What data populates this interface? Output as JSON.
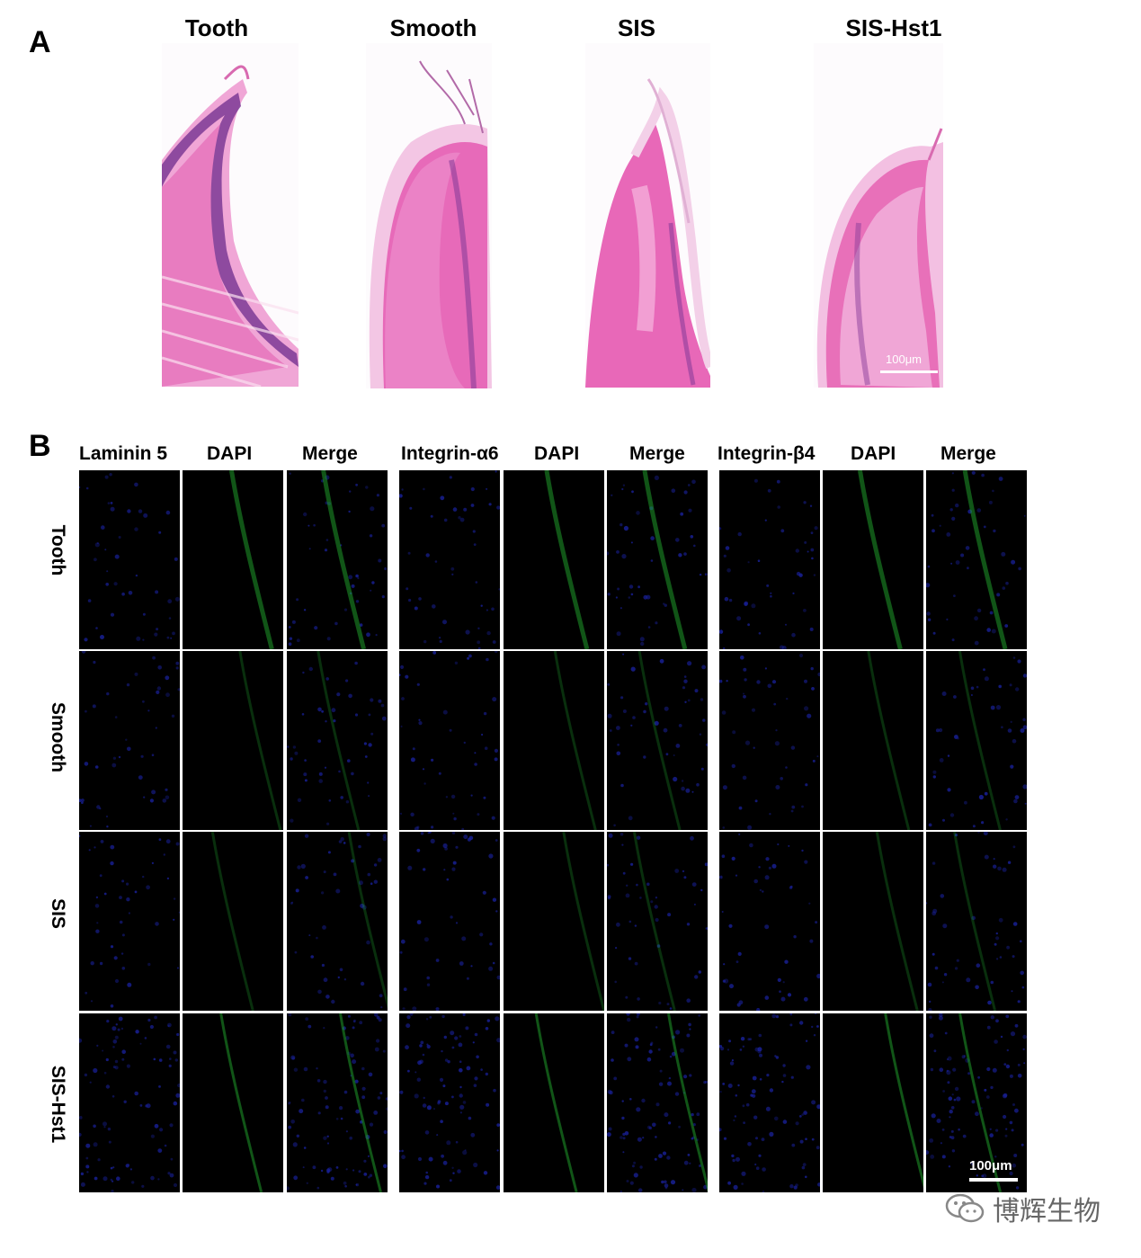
{
  "panel_a": {
    "letter": "A",
    "titles": [
      "Tooth",
      "Smooth",
      "SIS",
      "SIS-Hst1"
    ],
    "scale_label": "100μm"
  },
  "panel_b": {
    "letter": "B",
    "column_headers": [
      "Laminin 5",
      "DAPI",
      "Merge",
      "Integrin-α6",
      "DAPI",
      "Merge",
      "Integrin-β4",
      "DAPI",
      "Merge"
    ],
    "row_labels": [
      "Tooth",
      "Smooth",
      "SIS",
      "SIS-Hst1"
    ],
    "scale_label": "100μm"
  },
  "watermark": {
    "text": "博辉生物",
    "icon": "wechat-icon"
  },
  "colors": {
    "he_pink": "#e86ab8",
    "he_purple": "#8a3d9a",
    "dapi_blue": "#1a22a0",
    "green_signal": "#1f9a2a"
  }
}
